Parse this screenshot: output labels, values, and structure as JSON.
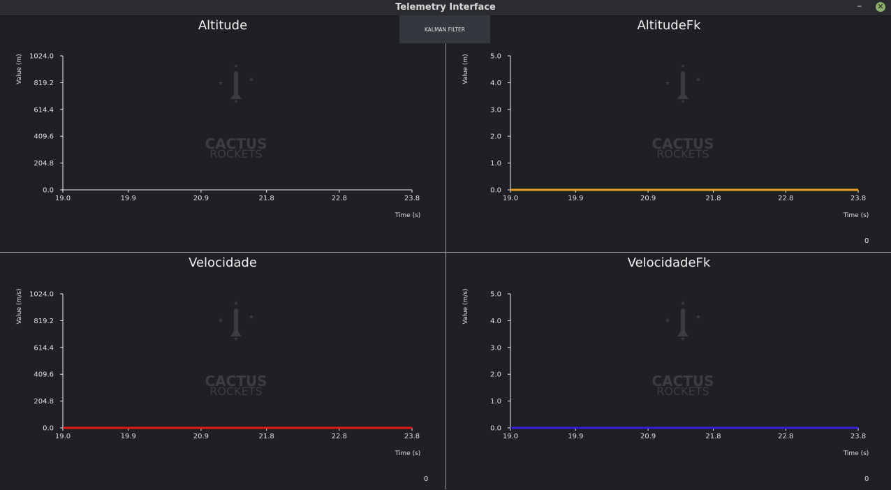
{
  "window": {
    "title": "Telemetry Interface",
    "minimize_glyph": "–",
    "close_glyph": "✕"
  },
  "toolbar": {
    "kalman_label": "KALMAN FILTER"
  },
  "watermark": {
    "line1": "CACTUS",
    "line2": "ROCKETS"
  },
  "colors": {
    "background": "#1f2024",
    "axis": "#f0f0f0",
    "altitude_fk_series": "#e8a020",
    "velocidade_series": "#e01818",
    "velocidade_fk_series": "#3020d8"
  },
  "panels": {
    "altitude": {
      "title": "Altitude",
      "ylabel": "Value (m)",
      "xlabel": "Time (s)",
      "counter": ""
    },
    "altitude_fk": {
      "title": "AltitudeFk",
      "ylabel": "Value (m)",
      "xlabel": "Time (s)",
      "counter": "0"
    },
    "velocidade": {
      "title": "Velocidade",
      "ylabel": "Value (m/s)",
      "xlabel": "Time (s)",
      "counter": "0"
    },
    "velocidade_fk": {
      "title": "VelocidadeFk",
      "ylabel": "Value (m/s)",
      "xlabel": "Time (s)",
      "counter": "0"
    }
  },
  "chart_data": [
    {
      "type": "line",
      "title": "Altitude",
      "xlabel": "Time (s)",
      "ylabel": "Value (m)",
      "xlim": [
        19.0,
        23.8
      ],
      "ylim": [
        0,
        1024
      ],
      "xticks": [
        "19.0",
        "19.9",
        "20.9",
        "21.8",
        "22.8",
        "23.8"
      ],
      "yticks": [
        "0.0",
        "204.8",
        "409.6",
        "614.4",
        "819.2",
        "1024.0"
      ],
      "series": []
    },
    {
      "type": "line",
      "title": "AltitudeFk",
      "xlabel": "Time (s)",
      "ylabel": "Value (m)",
      "xlim": [
        19.0,
        23.8
      ],
      "ylim": [
        0,
        5
      ],
      "xticks": [
        "19.0",
        "19.9",
        "20.9",
        "21.8",
        "22.8",
        "23.8"
      ],
      "yticks": [
        "0.0",
        "1.0",
        "2.0",
        "3.0",
        "4.0",
        "5.0"
      ],
      "series": [
        {
          "color": "#e8a020",
          "x_range": [
            19.0,
            23.8
          ],
          "value": 0.0
        }
      ]
    },
    {
      "type": "line",
      "title": "Velocidade",
      "xlabel": "Time (s)",
      "ylabel": "Value (m/s)",
      "xlim": [
        19.0,
        23.8
      ],
      "ylim": [
        0,
        1024
      ],
      "xticks": [
        "19.0",
        "19.9",
        "20.9",
        "21.8",
        "22.8",
        "23.8"
      ],
      "yticks": [
        "0.0",
        "204.8",
        "409.6",
        "614.4",
        "819.2",
        "1024.0"
      ],
      "series": [
        {
          "color": "#e01818",
          "x_range": [
            19.0,
            23.8
          ],
          "value": 0.0
        }
      ]
    },
    {
      "type": "line",
      "title": "VelocidadeFk",
      "xlabel": "Time (s)",
      "ylabel": "Value (m/s)",
      "xlim": [
        19.0,
        23.8
      ],
      "ylim": [
        0,
        5
      ],
      "xticks": [
        "19.0",
        "19.9",
        "20.9",
        "21.8",
        "22.8",
        "23.8"
      ],
      "yticks": [
        "0.0",
        "1.0",
        "2.0",
        "3.0",
        "4.0",
        "5.0"
      ],
      "series": [
        {
          "color": "#3020d8",
          "x_range": [
            19.0,
            23.8
          ],
          "value": 0.0
        }
      ]
    }
  ]
}
